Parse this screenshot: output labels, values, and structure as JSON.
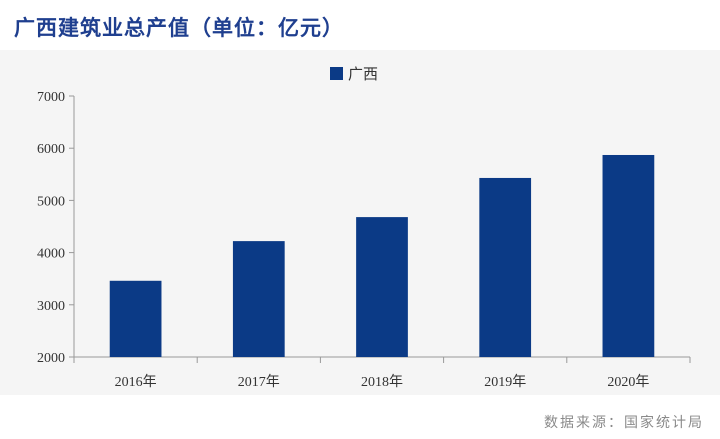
{
  "header": {
    "title": "广西建筑业总产值（单位：亿元）"
  },
  "footer": {
    "source": "数据来源：国家统计局"
  },
  "colors": {
    "bar": "#0b3a86",
    "title": "#1f3f8f",
    "panel": "#f5f5f5"
  },
  "chart_data": {
    "type": "bar",
    "categories": [
      "2016年",
      "2017年",
      "2018年",
      "2019年",
      "2020年"
    ],
    "series": [
      {
        "name": "广西",
        "values": [
          3460,
          4220,
          4680,
          5430,
          5870
        ]
      }
    ],
    "ylim": [
      2000,
      7000
    ],
    "yticks": [
      2000,
      3000,
      4000,
      5000,
      6000,
      7000
    ],
    "grid": false,
    "legend": "top-center"
  }
}
